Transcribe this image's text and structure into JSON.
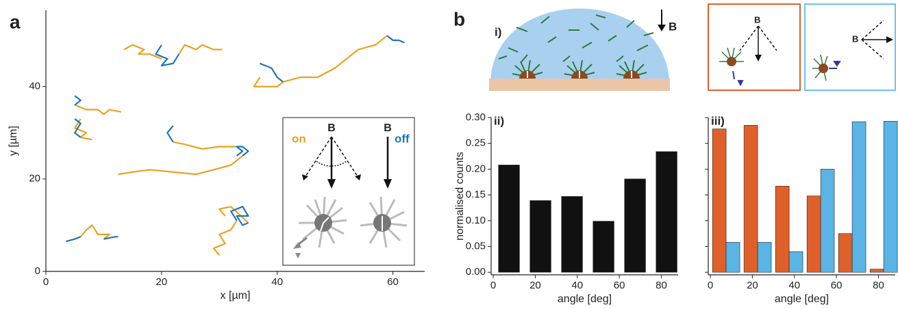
{
  "figure": {
    "panel_a": "a",
    "panel_b": "b"
  },
  "diagram": {
    "label": "i)",
    "field_labels": [
      "B",
      "B",
      "B"
    ]
  },
  "chart_data": [
    {
      "type": "line",
      "xlabel": "x [µm]",
      "ylabel": "y [µm]",
      "xlim": [
        0,
        65.5
      ],
      "ylim": [
        0,
        56.5
      ],
      "xticks": [
        0,
        20,
        40,
        60
      ],
      "yticks": [
        0,
        20,
        40
      ],
      "annotations": [
        "B",
        "B"
      ],
      "series": [
        {
          "name": "on",
          "color": "#e9a21f",
          "x": [
            13.5,
            15,
            17,
            16,
            18,
            20,
            null,
            23,
            24,
            26,
            27,
            29,
            30.5,
            null,
            37,
            36,
            38,
            40,
            41,
            44,
            47,
            50,
            52,
            54,
            57,
            59,
            null,
            5,
            7,
            9,
            10,
            11,
            13,
            null,
            6,
            5,
            7,
            6,
            8,
            null,
            12.5,
            15,
            18,
            22,
            26,
            29,
            32,
            34,
            null,
            33,
            30,
            27,
            24,
            22,
            null,
            6,
            7,
            8,
            9,
            11,
            10,
            null,
            30,
            29,
            31,
            30,
            32,
            33,
            null,
            35,
            32,
            30,
            31
          ],
          "values": [
            48,
            49,
            48,
            47,
            47,
            46,
            null,
            47,
            49,
            48,
            49,
            48,
            48,
            null,
            42,
            40,
            40,
            40,
            41,
            42,
            42,
            44,
            46,
            48,
            49,
            51,
            null,
            36,
            35,
            35,
            34,
            35,
            34.5,
            null,
            33,
            31,
            30,
            29,
            28.5,
            null,
            21,
            21.5,
            22,
            21.5,
            21,
            22,
            23,
            25,
            null,
            27,
            27,
            26.5,
            27.5,
            28,
            null,
            7.5,
            9,
            10,
            8,
            8,
            7,
            null,
            3.5,
            5,
            6,
            8,
            9,
            11,
            null,
            10.5,
            14,
            13.5,
            12
          ]
        },
        {
          "name": "off",
          "color": "#1f74b8",
          "x": [
            20,
            19,
            21,
            20,
            22,
            23,
            null,
            37,
            39,
            40,
            41,
            null,
            59,
            60,
            61,
            62,
            null,
            5,
            6,
            5,
            null,
            5,
            6,
            5,
            6,
            null,
            34,
            35,
            34,
            33,
            34,
            33,
            null,
            22,
            21,
            22,
            null,
            3.5,
            5,
            6,
            null,
            10,
            12,
            12.5,
            null,
            33,
            32,
            34,
            35,
            33,
            34,
            35
          ],
          "values": [
            49,
            47,
            46,
            44.5,
            45,
            47,
            null,
            45,
            44,
            42,
            41,
            null,
            51,
            50,
            50,
            49.5,
            null,
            38,
            37,
            36,
            null,
            33,
            32,
            30,
            29,
            null,
            25,
            26,
            27,
            27,
            26,
            25,
            null,
            28,
            30,
            31.5,
            null,
            6.5,
            7,
            7.5,
            null,
            7,
            7.5,
            7.5,
            null,
            11,
            13,
            14,
            12,
            12,
            10,
            10.5
          ]
        }
      ]
    },
    {
      "type": "bar",
      "label": "ii)",
      "xlabel": "angle [deg]",
      "ylabel": "normalised counts",
      "xlim": [
        -1,
        88
      ],
      "ylim": [
        -0.005,
        0.3
      ],
      "xticks": [
        0,
        20,
        40,
        60,
        80
      ],
      "yticks": [
        {
          "value": 0,
          "label": "0.00"
        },
        0.05,
        {
          "value": 0.1,
          "label": "0.10"
        },
        0.15,
        {
          "value": 0.2,
          "label": "0.20"
        },
        0.25,
        {
          "value": 0.3,
          "label": "0.30"
        }
      ],
      "x": [
        7.5,
        22.5,
        37.5,
        52.5,
        67.5,
        82.5
      ],
      "values": [
        0.208,
        0.139,
        0.147,
        0.099,
        0.181,
        0.234
      ],
      "color": "#111111"
    },
    {
      "type": "bar",
      "label": "iii)",
      "xlabel": "angle [deg]",
      "xlim": [
        -1,
        88
      ],
      "ylim": [
        -0.005,
        0.3
      ],
      "xticks": [
        0,
        20,
        40,
        60,
        80
      ],
      "yticks": [
        0,
        0.05,
        0.1,
        0.15,
        0.2,
        0.25,
        0.3
      ],
      "ytick_labels": false,
      "x": [
        7.5,
        22.5,
        37.5,
        52.5,
        67.5,
        82.5
      ],
      "series": [
        {
          "color": "#e0602a",
          "values": [
            0.278,
            0.285,
            0.167,
            0.148,
            0.075,
            0.006
          ]
        },
        {
          "color": "#5ab4e5",
          "values": [
            0.058,
            0.058,
            0.04,
            0.2,
            0.292,
            0.293
          ]
        }
      ]
    }
  ]
}
